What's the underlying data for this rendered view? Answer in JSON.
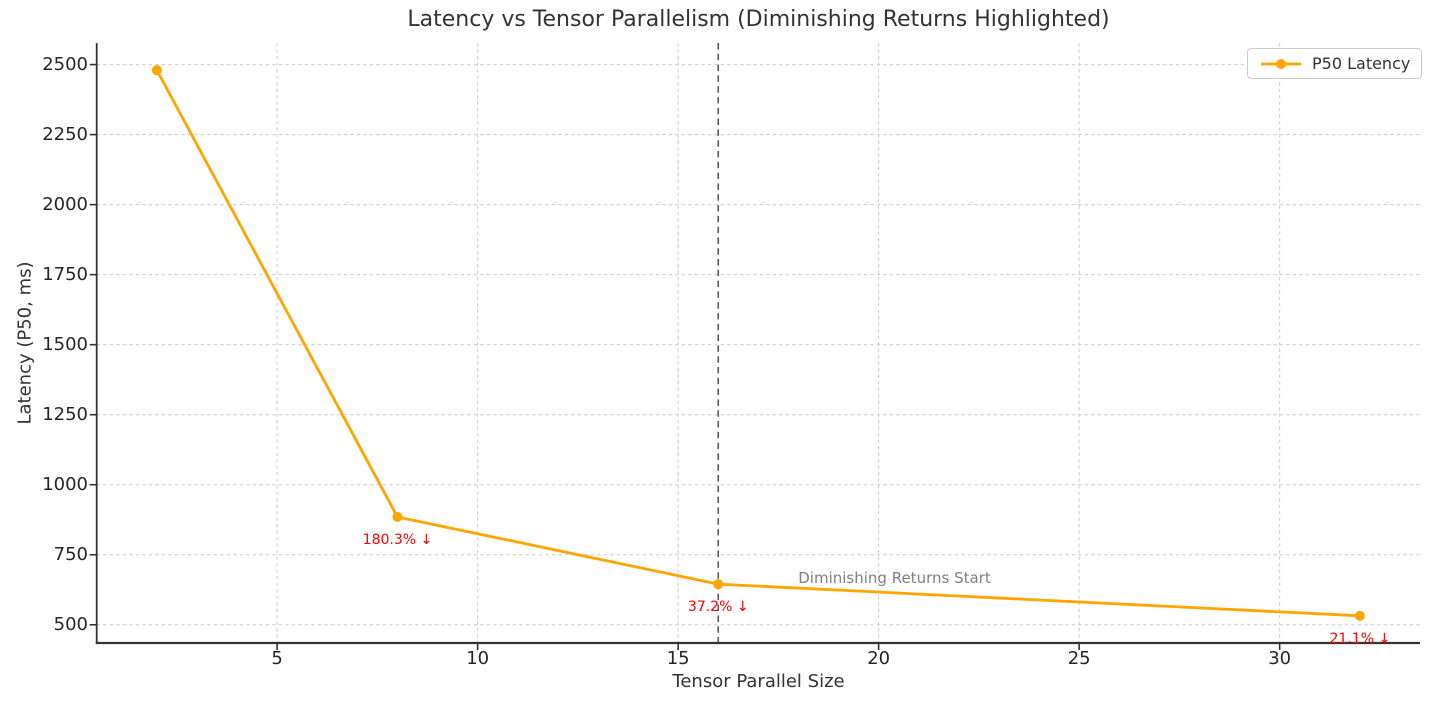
{
  "chart_data": {
    "type": "line",
    "title": "Latency vs Tensor Parallelism (Diminishing Returns Highlighted)",
    "xlabel": "Tensor Parallel Size",
    "ylabel": "Latency (P50, ms)",
    "x": [
      2,
      8,
      16,
      32
    ],
    "series": [
      {
        "name": "P50 Latency",
        "values": [
          2480,
          885,
          645,
          532
        ],
        "color": "#FFA500",
        "marker": "circle",
        "line_width": 2.8,
        "marker_radius": 5
      }
    ],
    "xlim": [
      0.5,
      33.5
    ],
    "ylim": [
      435,
      2577
    ],
    "xticks": [
      5,
      10,
      15,
      20,
      25,
      30
    ],
    "yticks": [
      500,
      750,
      1000,
      1250,
      1500,
      1750,
      2000,
      2250,
      2500
    ],
    "grid": true,
    "grid_color": "#cccccc",
    "spine_color": "#333333",
    "tick_label_color": "#262626",
    "legend_position": "upper right",
    "annotations": [
      {
        "text": "180.3% ↓",
        "x": 8,
        "y": 885,
        "color": "#ff0000"
      },
      {
        "text": "37.2% ↓",
        "x": 16,
        "y": 645,
        "color": "#ff0000"
      },
      {
        "text": "21.1% ↓",
        "x": 32,
        "y": 532,
        "color": "#ff0000"
      }
    ],
    "vline": {
      "x": 16,
      "label": "Diminishing Returns Start",
      "color": "#595959",
      "label_color": "#808080"
    }
  }
}
